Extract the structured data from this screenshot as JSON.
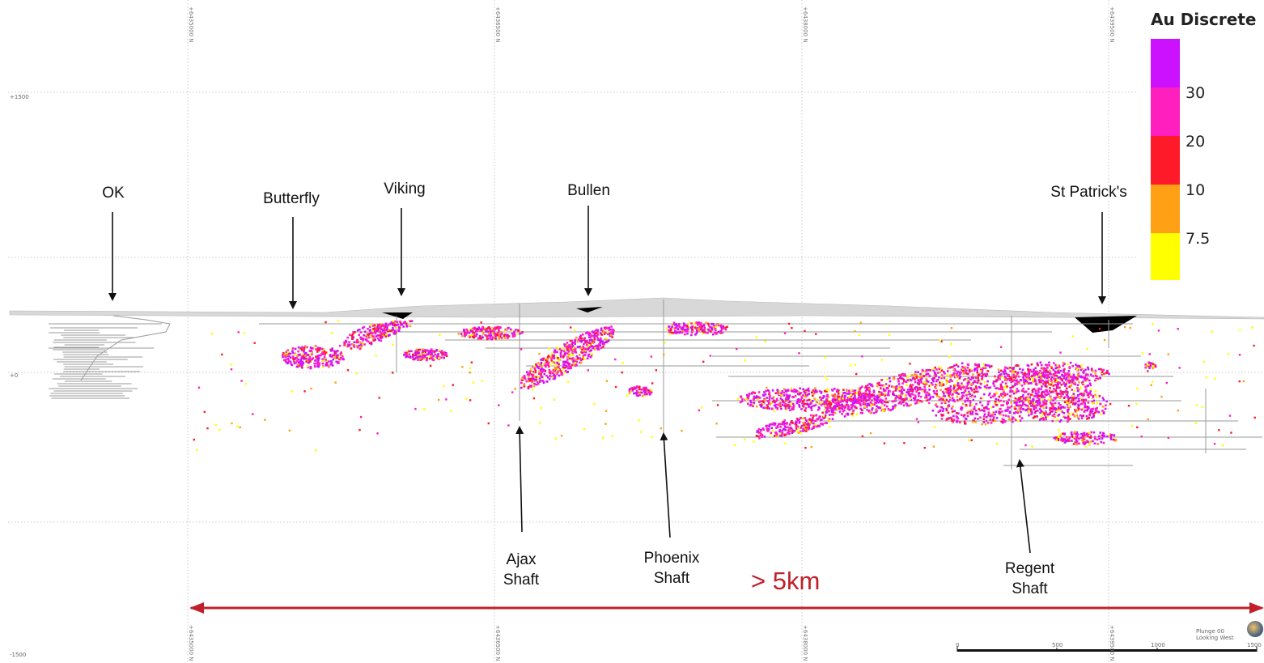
{
  "legend": {
    "title": "Au Discrete",
    "bins": [
      {
        "label": "30",
        "color": "#cc11ff"
      },
      {
        "label": "20",
        "color": "#ff1fbf"
      },
      {
        "label": "10",
        "color": "#ff1a2a"
      },
      {
        "label": "7.5",
        "color": "#ffa015"
      },
      {
        "label": "",
        "color": "#ffff00"
      }
    ]
  },
  "annotations": {
    "ok": "OK",
    "butterfly": "Butterfly",
    "viking": "Viking",
    "bullen": "Bullen",
    "st_patricks": "St Patrick's",
    "ajax": "Ajax\nShaft",
    "phoenix": "Phoenix\nShaft",
    "regent": "Regent\nShaft",
    "extent": "> 5km"
  },
  "grid": {
    "northings": [
      "+6435000 N",
      "+6436500 N",
      "+6438000 N",
      "+6439500 N"
    ],
    "elevations": [
      "+1500",
      "+0",
      "-1500"
    ]
  },
  "scale_bar": {
    "ticks": [
      "0",
      "500",
      "1000",
      "1500"
    ]
  },
  "view": {
    "plunge": "Plunge 00",
    "azimuth": "Looking West"
  },
  "colors": {
    "arrow": "#c0202a",
    "drives": "#999999",
    "topo": "#d8d8d8",
    "pits": "#000000"
  }
}
